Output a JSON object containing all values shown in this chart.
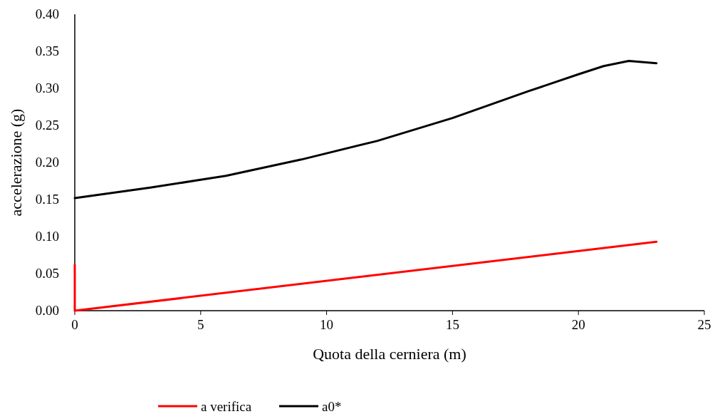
{
  "chart_data": {
    "type": "line",
    "xlabel": "Quota della cerniera (m)",
    "ylabel": "accelerazione (g)",
    "xlim": [
      0,
      25
    ],
    "xticks": [
      0,
      5,
      10,
      15,
      20,
      25
    ],
    "ylim": [
      0,
      0.4
    ],
    "yticks": [
      {
        "value": 0,
        "label": "0.00"
      },
      {
        "value": 0.05,
        "label": "0.05"
      },
      {
        "value": 0.1,
        "label": "0.10"
      },
      {
        "value": 0.15,
        "label": "0.15"
      },
      {
        "value": 0.2,
        "label": "0.20"
      },
      {
        "value": 0.25,
        "label": "0.25"
      },
      {
        "value": 0.3,
        "label": "0.30"
      },
      {
        "value": 0.35,
        "label": "0.35"
      },
      {
        "value": 0.4,
        "label": "0.40"
      }
    ],
    "grid": false,
    "legend": "bottom",
    "marker": "none",
    "line_style": "solid",
    "series": [
      {
        "name": "a verifica",
        "color": "#ff0000",
        "x": [
          0,
          0,
          23.1
        ],
        "values": [
          0.062,
          0,
          0.093
        ]
      },
      {
        "name": "a0*",
        "color": "#000000",
        "x": [
          0,
          3,
          6,
          9,
          12,
          15,
          18,
          20,
          21,
          22,
          23.1
        ],
        "values": [
          0.152,
          0.166,
          0.182,
          0.204,
          0.229,
          0.26,
          0.296,
          0.319,
          0.33,
          0.337,
          0.334
        ]
      }
    ]
  }
}
